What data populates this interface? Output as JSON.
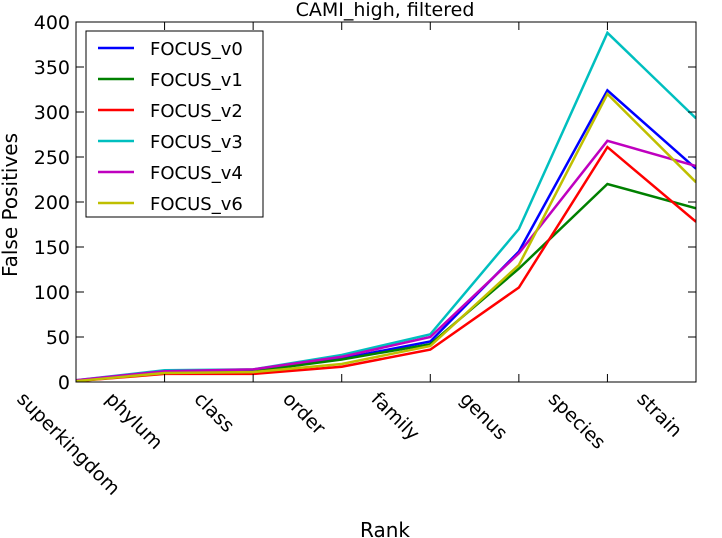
{
  "chart_data": {
    "type": "line",
    "title": "CAMI_high, filtered",
    "xlabel": "Rank",
    "ylabel": "False Positives",
    "categories": [
      "superkingdom",
      "phylum",
      "class",
      "order",
      "family",
      "genus",
      "species",
      "strain"
    ],
    "ylim": [
      0,
      400
    ],
    "yticks": [
      0,
      50,
      100,
      150,
      200,
      250,
      300,
      350,
      400
    ],
    "grid": false,
    "legend_position": "top-left",
    "series": [
      {
        "name": "FOCUS_v0",
        "color": "#0000ff",
        "values": [
          1,
          11,
          12,
          26,
          45,
          145,
          324,
          237
        ]
      },
      {
        "name": "FOCUS_v1",
        "color": "#008000",
        "values": [
          1,
          11,
          12,
          25,
          42,
          126,
          220,
          193
        ]
      },
      {
        "name": "FOCUS_v2",
        "color": "#ff0000",
        "values": [
          1,
          9,
          9,
          17,
          36,
          105,
          261,
          178
        ]
      },
      {
        "name": "FOCUS_v3",
        "color": "#00bfbf",
        "values": [
          2,
          13,
          14,
          30,
          53,
          170,
          388,
          293
        ]
      },
      {
        "name": "FOCUS_v4",
        "color": "#bf00bf",
        "values": [
          2,
          12,
          14,
          28,
          50,
          143,
          268,
          240
        ]
      },
      {
        "name": "FOCUS_v6",
        "color": "#bfbf00",
        "values": [
          1,
          10,
          11,
          20,
          40,
          130,
          320,
          222
        ]
      }
    ]
  }
}
